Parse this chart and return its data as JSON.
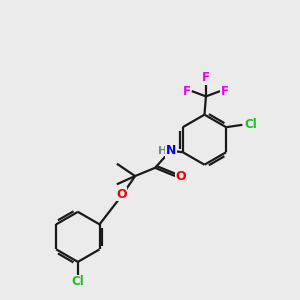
{
  "background_color": "#ebebeb",
  "bond_color": "#1a1a1a",
  "atom_colors": {
    "C": "#1a1a1a",
    "H": "#6e8b8b",
    "N": "#0000ee",
    "O": "#ee0000",
    "F": "#ee00ee",
    "Cl": "#22bb22"
  },
  "figsize": [
    3.0,
    3.0
  ],
  "dpi": 100,
  "lw": 1.6,
  "r_ring": 0.85
}
